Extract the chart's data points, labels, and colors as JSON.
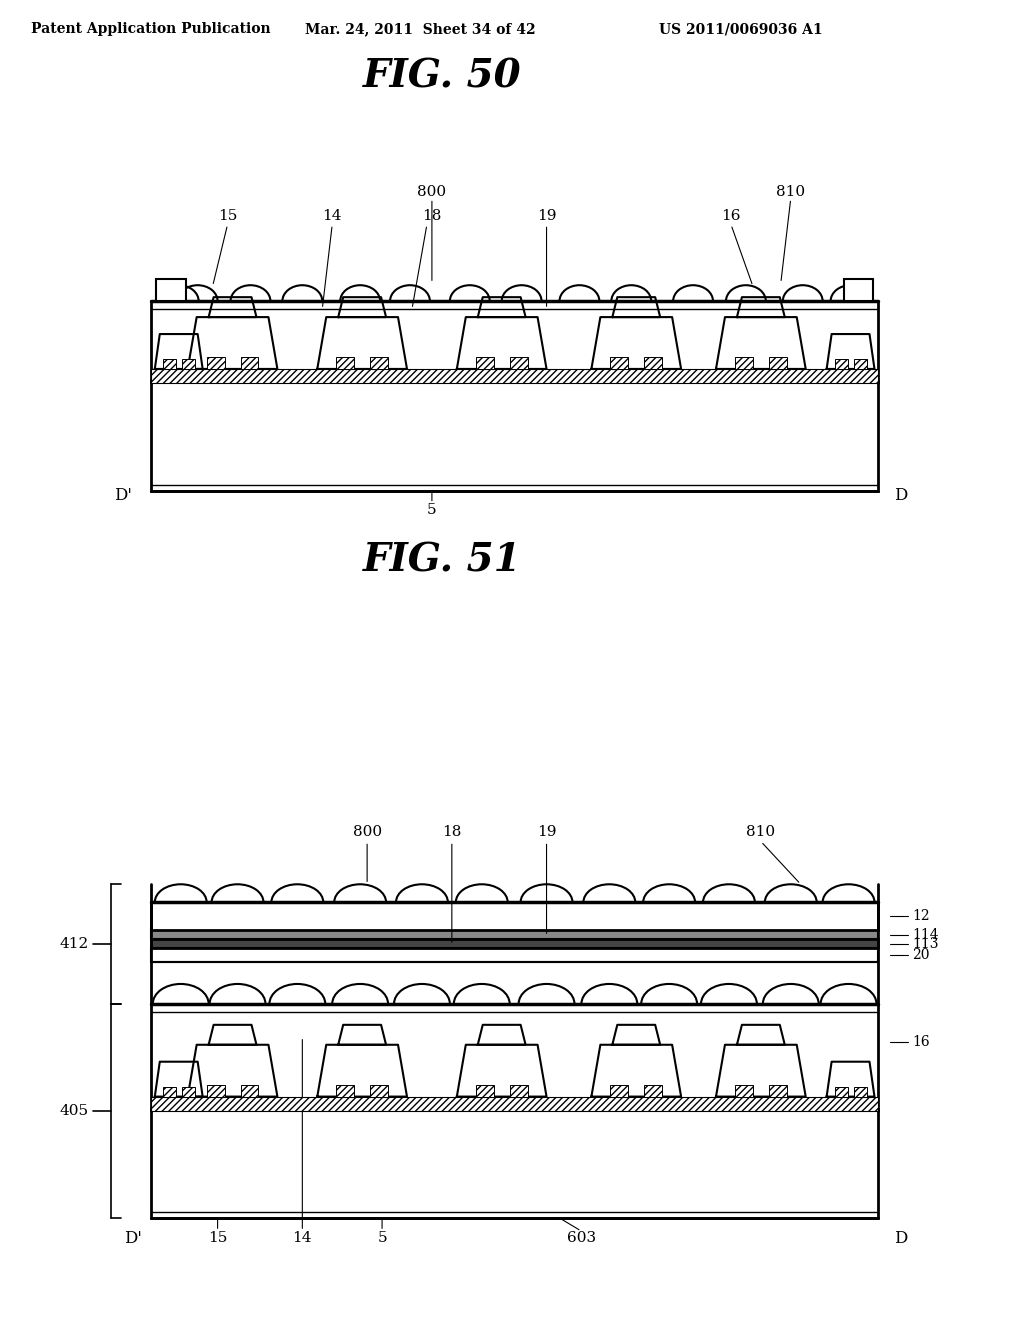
{
  "bg_color": "#ffffff",
  "header_text": "Patent Application Publication",
  "header_date": "Mar. 24, 2011  Sheet 34 of 42",
  "header_patent": "US 2011/0069036 A1",
  "fig50_title": "FIG. 50",
  "fig51_title": "FIG. 51"
}
